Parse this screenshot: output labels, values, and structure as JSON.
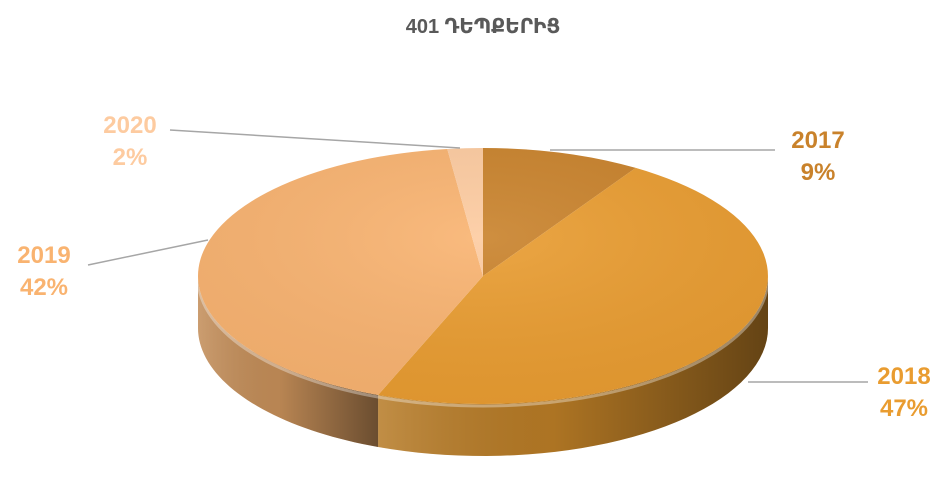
{
  "chart_data": {
    "type": "pie",
    "title": "401 ԴԵՊՔԵՐԻՑ",
    "categories": [
      "2017",
      "2018",
      "2019",
      "2020"
    ],
    "values": [
      9,
      47,
      42,
      2
    ],
    "value_labels": [
      "9%",
      "47%",
      "42%",
      "2%"
    ],
    "colors": [
      "#C9822B",
      "#E99C30",
      "#F9B370",
      "#FDCBA0"
    ],
    "start_angle_deg": 0,
    "direction": "clockwise",
    "style": "3d"
  }
}
